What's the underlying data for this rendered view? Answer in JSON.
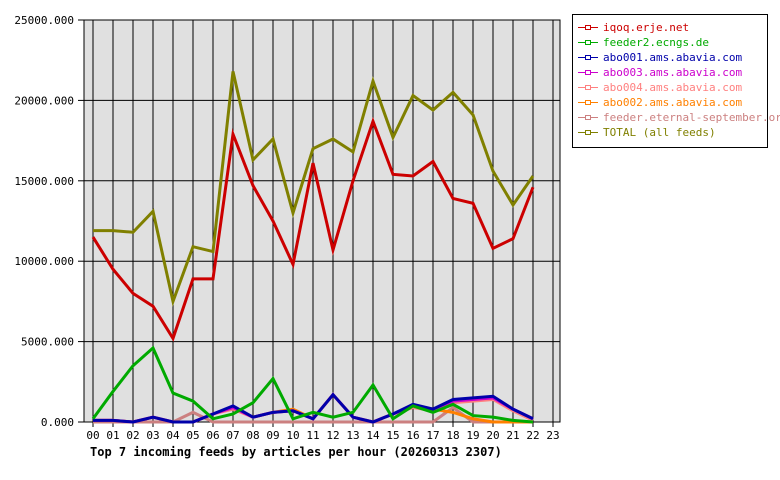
{
  "chart_data": {
    "type": "line",
    "title": "Top 7 incoming feeds by articles per hour (20260313 2307)",
    "xlabel": "",
    "ylabel": "",
    "ylim": [
      0,
      25000
    ],
    "yticks": [
      "0.000",
      "5000.000",
      "10000.000",
      "15000.000",
      "20000.000",
      "25000.000"
    ],
    "grid": true,
    "legend_position": "right",
    "x": [
      "00",
      "01",
      "02",
      "03",
      "04",
      "05",
      "06",
      "07",
      "08",
      "09",
      "10",
      "11",
      "12",
      "13",
      "14",
      "15",
      "16",
      "17",
      "18",
      "19",
      "20",
      "21",
      "22",
      "23"
    ],
    "series": [
      {
        "name": "iqoq.erje.net",
        "color": "#cc0000",
        "values": [
          11500,
          9500,
          8000,
          7200,
          5200,
          8900,
          8900,
          17900,
          14700,
          12500,
          9800,
          16100,
          10700,
          15000,
          18700,
          15400,
          15300,
          16200,
          13900,
          13600,
          10800,
          11400,
          14600
        ]
      },
      {
        "name": "feeder2.ecngs.de",
        "color": "#00aa00",
        "values": [
          200,
          1900,
          3500,
          4600,
          1800,
          1300,
          200,
          500,
          1200,
          2700,
          200,
          600,
          300,
          600,
          2300,
          200,
          1000,
          600,
          1100,
          400,
          300,
          100,
          0
        ]
      },
      {
        "name": "abo001.ams.abavia.com",
        "color": "#0000aa",
        "values": [
          100,
          100,
          0,
          300,
          0,
          0,
          500,
          1000,
          300,
          600,
          700,
          200,
          1700,
          300,
          0,
          500,
          1100,
          800,
          1400,
          1500,
          1600,
          800,
          200
        ]
      },
      {
        "name": "abo003.ams.abavia.com",
        "color": "#cc00cc",
        "values": [
          100,
          100,
          0,
          300,
          0,
          0,
          500,
          900,
          300,
          600,
          700,
          200,
          1700,
          300,
          0,
          500,
          1000,
          800,
          1300,
          1400,
          1500,
          800,
          200
        ]
      },
      {
        "name": "abo004.ams.abavia.com",
        "color": "#ff8080",
        "values": [
          100,
          100,
          0,
          300,
          0,
          0,
          500,
          800,
          300,
          600,
          700,
          200,
          1700,
          300,
          0,
          500,
          900,
          700,
          1200,
          1300,
          1400,
          700,
          100
        ]
      },
      {
        "name": "abo002.ams.abavia.com",
        "color": "#ff8000",
        "values": [
          100,
          100,
          0,
          300,
          0,
          0,
          500,
          900,
          300,
          600,
          800,
          200,
          1700,
          300,
          0,
          500,
          1000,
          800,
          600,
          200,
          0,
          0,
          0
        ]
      },
      {
        "name": "feeder.eternal-september.org",
        "color": "#cc8080",
        "values": [
          0,
          0,
          0,
          0,
          0,
          600,
          0,
          0,
          0,
          0,
          0,
          0,
          0,
          0,
          0,
          0,
          0,
          0,
          900,
          0,
          0,
          0,
          0
        ]
      },
      {
        "name": "TOTAL (all feeds)",
        "color": "#808000",
        "values": [
          11900,
          11900,
          11800,
          13100,
          7500,
          10900,
          10600,
          21800,
          16300,
          17600,
          13000,
          17000,
          17600,
          16800,
          21200,
          17700,
          20300,
          19400,
          20500,
          19100,
          15600,
          13500,
          15300
        ]
      }
    ]
  },
  "legend": {
    "items": [
      {
        "label": "iqoq.erje.net",
        "color": "#cc0000"
      },
      {
        "label": "feeder2.ecngs.de",
        "color": "#00aa00"
      },
      {
        "label": "abo001.ams.abavia.com",
        "color": "#0000aa"
      },
      {
        "label": "abo003.ams.abavia.com",
        "color": "#cc00cc"
      },
      {
        "label": "abo004.ams.abavia.com",
        "color": "#ff8080"
      },
      {
        "label": "abo002.ams.abavia.com",
        "color": "#ff8000"
      },
      {
        "label": "feeder.eternal-september.org",
        "color": "#cc8080"
      },
      {
        "label": "TOTAL (all feeds)",
        "color": "#808000"
      }
    ]
  },
  "colors": {
    "plot_background": "#e0e0e0",
    "grid": "#000000",
    "page_background": "#ffffff"
  }
}
